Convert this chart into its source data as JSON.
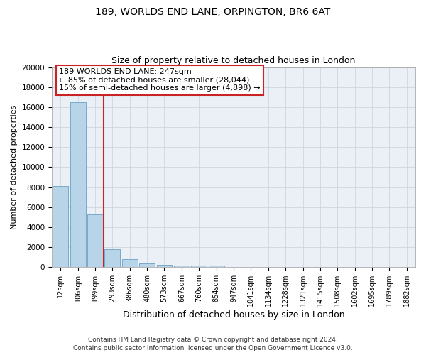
{
  "title1": "189, WORLDS END LANE, ORPINGTON, BR6 6AT",
  "title2": "Size of property relative to detached houses in London",
  "xlabel": "Distribution of detached houses by size in London",
  "ylabel": "Number of detached properties",
  "categories": [
    "12sqm",
    "106sqm",
    "199sqm",
    "293sqm",
    "386sqm",
    "480sqm",
    "573sqm",
    "667sqm",
    "760sqm",
    "854sqm",
    "947sqm",
    "1041sqm",
    "1134sqm",
    "1228sqm",
    "1321sqm",
    "1415sqm",
    "1508sqm",
    "1602sqm",
    "1695sqm",
    "1789sqm",
    "1882sqm"
  ],
  "values": [
    8100,
    16500,
    5300,
    1800,
    800,
    350,
    250,
    150,
    150,
    150,
    0,
    0,
    0,
    0,
    0,
    0,
    0,
    0,
    0,
    0,
    0
  ],
  "bar_color": "#b8d4e8",
  "bar_edge_color": "#7aaac8",
  "vline_x": 2.5,
  "vline_color": "#cc2222",
  "annotation_line1": "189 WORLDS END LANE: 247sqm",
  "annotation_line2": "← 85% of detached houses are smaller (28,044)",
  "annotation_line3": "15% of semi-detached houses are larger (4,898) →",
  "annotation_box_color": "#cc2222",
  "ylim": [
    0,
    20000
  ],
  "yticks": [
    0,
    2000,
    4000,
    6000,
    8000,
    10000,
    12000,
    14000,
    16000,
    18000,
    20000
  ],
  "grid_color": "#c8d0d8",
  "bg_color": "#eaf0f6",
  "footer1": "Contains HM Land Registry data © Crown copyright and database right 2024.",
  "footer2": "Contains public sector information licensed under the Open Government Licence v3.0.",
  "title1_fontsize": 10,
  "title2_fontsize": 9,
  "ylabel_fontsize": 8,
  "xlabel_fontsize": 9,
  "tick_fontsize": 7.5,
  "xtick_fontsize": 7,
  "footer_fontsize": 6.5,
  "annot_fontsize": 8
}
